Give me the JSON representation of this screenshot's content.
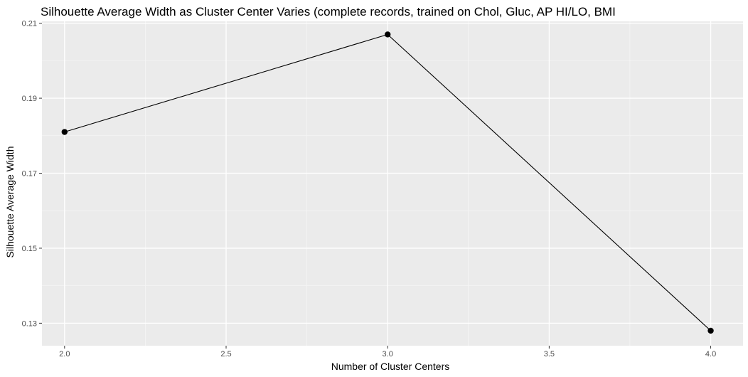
{
  "chart_data": {
    "type": "line",
    "title": "Silhouette Average Width as Cluster Center Varies (complete records, trained on Chol, Gluc, AP HI/LO, BMI",
    "xlabel": "Number of Cluster Centers",
    "ylabel": "Silhouette Average Width",
    "x": [
      2.0,
      3.0,
      4.0
    ],
    "series": [
      {
        "values": [
          0.181,
          0.207,
          0.128
        ]
      }
    ],
    "xlim": [
      1.93,
      4.1
    ],
    "ylim": [
      0.124,
      0.2105
    ],
    "x_ticks": [
      "2.0",
      "2.5",
      "3.0",
      "3.5",
      "4.0"
    ],
    "y_ticks": [
      "0.13",
      "0.15",
      "0.17",
      "0.19",
      "0.21"
    ],
    "grid": true,
    "legend": "none",
    "colors": {
      "panel_background": "#ebebeb",
      "grid_major": "#ffffff",
      "grid_minor": "#f5f5f5",
      "line": "#000000",
      "point": "#000000"
    }
  }
}
